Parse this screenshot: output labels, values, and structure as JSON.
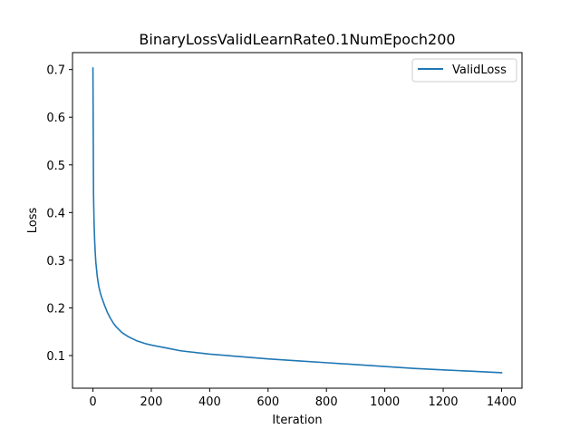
{
  "chart_data": {
    "type": "line",
    "title": "BinaryLossValidLearnRate0.1NumEpoch200",
    "xlabel": "Iteration",
    "ylabel": "Loss",
    "xlim": [
      -70,
      1470
    ],
    "ylim": [
      0.0315,
      0.7355
    ],
    "xticks": [
      0,
      200,
      400,
      600,
      800,
      1000,
      1200,
      1400
    ],
    "yticks": [
      0.1,
      0.2,
      0.3,
      0.4,
      0.5,
      0.6,
      0.7
    ],
    "grid": false,
    "legend_position": "upper right",
    "series": [
      {
        "name": "ValidLoss",
        "color": "#1f77b4",
        "x": [
          0,
          2,
          4,
          6,
          8,
          10,
          15,
          20,
          25,
          30,
          40,
          50,
          60,
          70,
          80,
          100,
          120,
          150,
          180,
          200,
          250,
          300,
          400,
          500,
          600,
          700,
          800,
          900,
          1000,
          1100,
          1200,
          1300,
          1400
        ],
        "y": [
          0.703,
          0.44,
          0.375,
          0.34,
          0.315,
          0.295,
          0.265,
          0.245,
          0.232,
          0.222,
          0.205,
          0.19,
          0.178,
          0.168,
          0.16,
          0.148,
          0.14,
          0.131,
          0.125,
          0.122,
          0.116,
          0.11,
          0.103,
          0.098,
          0.093,
          0.089,
          0.085,
          0.081,
          0.077,
          0.073,
          0.07,
          0.067,
          0.064
        ]
      }
    ]
  }
}
